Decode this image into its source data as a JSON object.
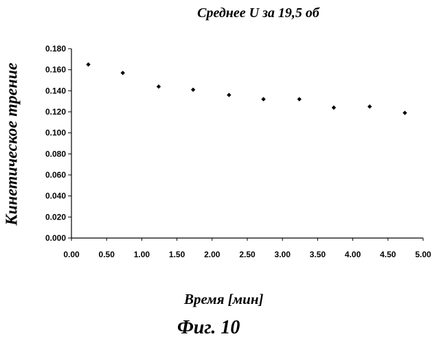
{
  "chart_data": {
    "type": "scatter",
    "title": "Среднее U за 19,5 об",
    "xlabel": "Время [мин]",
    "ylabel": "Кинетическое трение",
    "xlim": [
      0,
      5
    ],
    "ylim": [
      0,
      0.18
    ],
    "x_ticks": [
      "0.00",
      "0.50",
      "1.00",
      "1.50",
      "2.00",
      "2.50",
      "3.00",
      "3.50",
      "4.00",
      "4.50",
      "5.00"
    ],
    "y_ticks": [
      "0.000",
      "0.020",
      "0.040",
      "0.060",
      "0.080",
      "0.100",
      "0.120",
      "0.140",
      "0.160",
      "0.180"
    ],
    "grid": false,
    "points": [
      {
        "x": 0.24,
        "y": 0.165
      },
      {
        "x": 0.73,
        "y": 0.157
      },
      {
        "x": 1.24,
        "y": 0.144
      },
      {
        "x": 1.73,
        "y": 0.141
      },
      {
        "x": 2.24,
        "y": 0.136
      },
      {
        "x": 2.73,
        "y": 0.132
      },
      {
        "x": 3.24,
        "y": 0.132
      },
      {
        "x": 3.73,
        "y": 0.124
      },
      {
        "x": 4.24,
        "y": 0.125
      },
      {
        "x": 4.74,
        "y": 0.119
      }
    ]
  },
  "caption": "Фиг. 10"
}
